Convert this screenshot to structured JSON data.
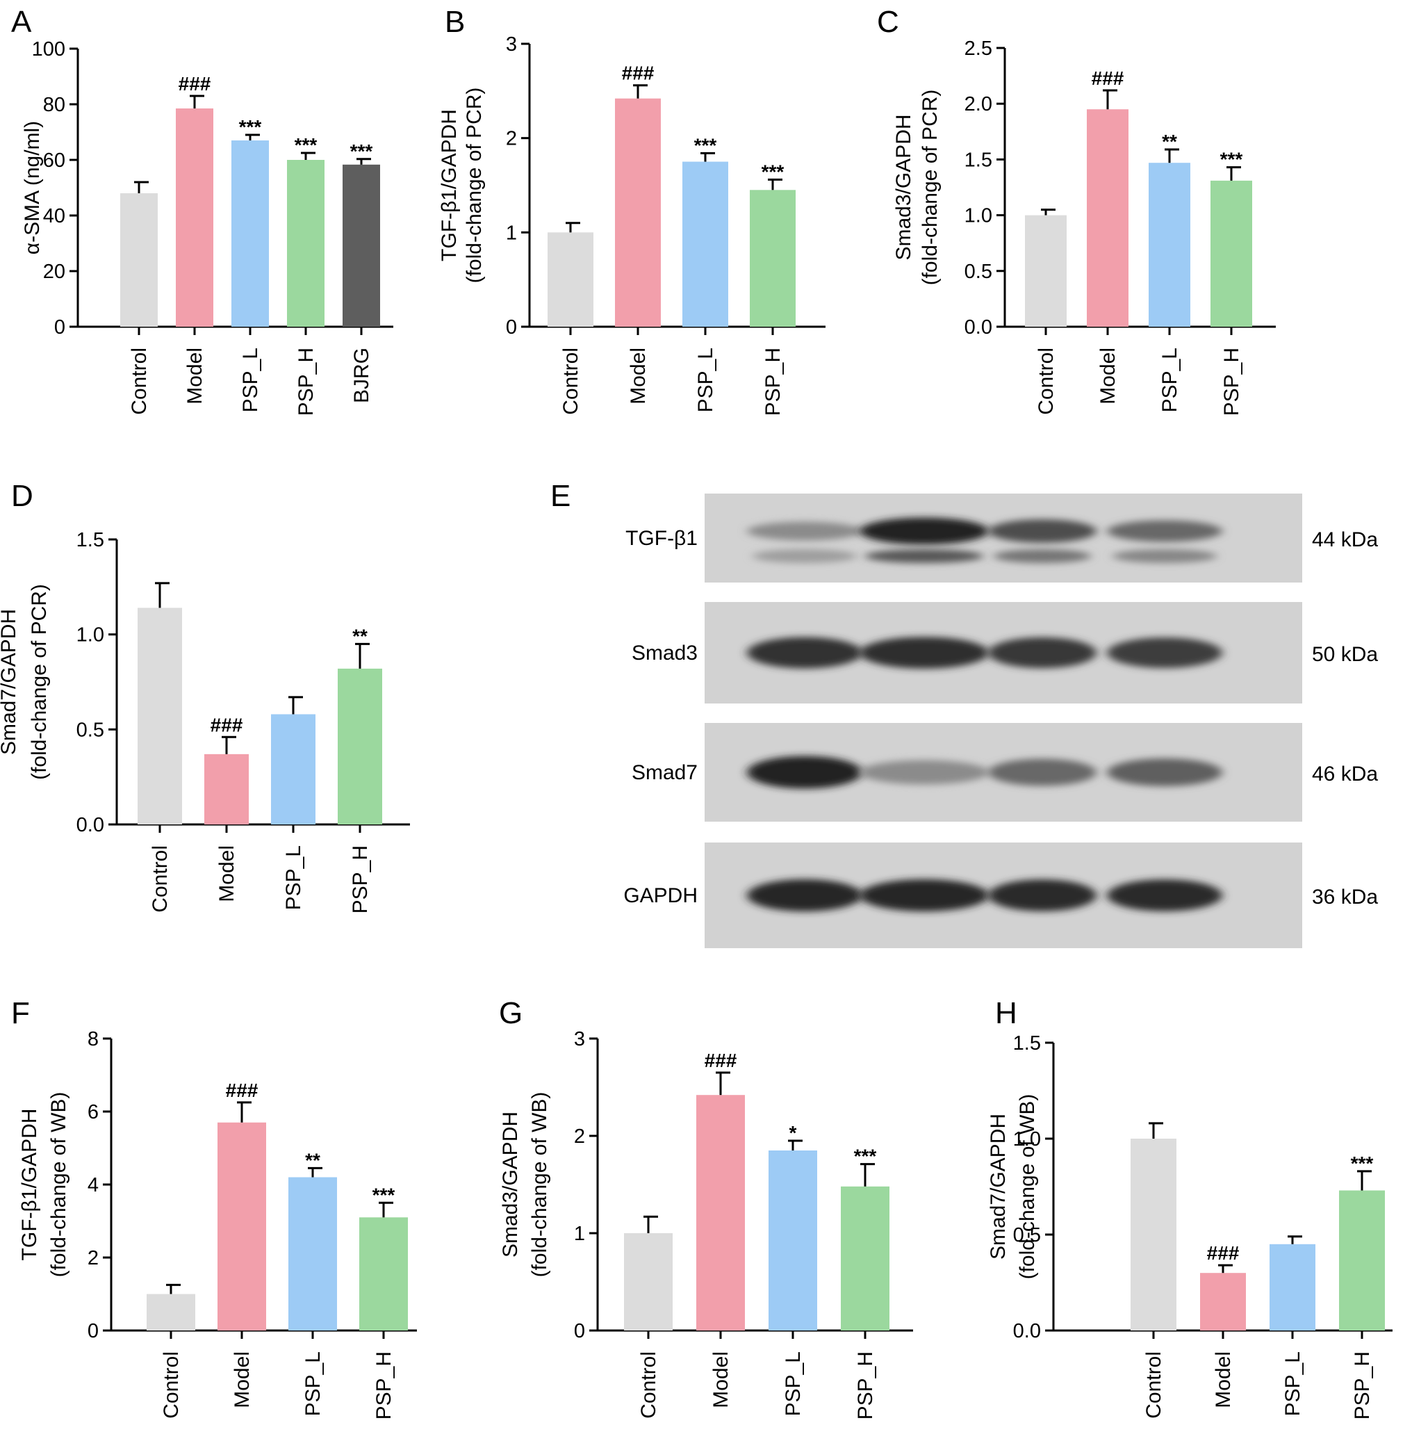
{
  "colors": {
    "Control": "#dcdcdc",
    "Model": "#f29fab",
    "PSP_L": "#9dcbf5",
    "PSP_H": "#9bd89e",
    "BJRG": "#5e5e5e"
  },
  "chart_data": [
    {
      "panel": "A",
      "type": "bar",
      "categories": [
        "Control",
        "Model",
        "PSP_L",
        "PSP_H",
        "BJRG"
      ],
      "values": [
        48,
        78.5,
        67,
        60,
        58.3
      ],
      "errors": [
        4,
        4.5,
        2,
        2.5,
        2
      ],
      "significance": [
        "",
        "###",
        "***",
        "***",
        "***"
      ],
      "ylabel": "α-SMA (ng/ml)",
      "ylim": [
        0,
        100
      ],
      "yticks": [
        "0",
        "20",
        "40",
        "60",
        "80",
        "100"
      ]
    },
    {
      "panel": "B",
      "type": "bar",
      "categories": [
        "Control",
        "Model",
        "PSP_L",
        "PSP_H"
      ],
      "values": [
        1.0,
        2.42,
        1.75,
        1.45
      ],
      "errors": [
        0.1,
        0.14,
        0.09,
        0.11
      ],
      "significance": [
        "",
        "###",
        "***",
        "***"
      ],
      "ylabel": "TGF-β1/GAPDH",
      "ylabel2": "(fold-change of PCR)",
      "ylim": [
        0,
        3
      ],
      "yticks": [
        "0",
        "1",
        "2",
        "3"
      ]
    },
    {
      "panel": "C",
      "type": "bar",
      "categories": [
        "Control",
        "Model",
        "PSP_L",
        "PSP_H"
      ],
      "values": [
        1.0,
        1.95,
        1.47,
        1.31
      ],
      "errors": [
        0.05,
        0.17,
        0.12,
        0.12
      ],
      "significance": [
        "",
        "###",
        "**",
        "***"
      ],
      "ylabel": "Smad3/GAPDH",
      "ylabel2": "(fold-change of PCR)",
      "ylim": [
        0,
        2.5
      ],
      "yticks": [
        "0.0",
        "0.5",
        "1.0",
        "1.5",
        "2.0",
        "2.5"
      ]
    },
    {
      "panel": "D",
      "type": "bar",
      "categories": [
        "Control",
        "Model",
        "PSP_L",
        "PSP_H"
      ],
      "values": [
        1.14,
        0.37,
        0.58,
        0.82
      ],
      "errors": [
        0.13,
        0.09,
        0.09,
        0.13
      ],
      "significance": [
        "",
        "###",
        "",
        "**"
      ],
      "ylabel": "Smad7/GAPDH",
      "ylabel2": "(fold-change of PCR)",
      "ylim": [
        0,
        1.5
      ],
      "yticks": [
        "0.0",
        "0.5",
        "1.0",
        "1.5"
      ]
    },
    {
      "panel": "F",
      "type": "bar",
      "categories": [
        "Control",
        "Model",
        "PSP_L",
        "PSP_H"
      ],
      "values": [
        1.0,
        5.7,
        4.2,
        3.1
      ],
      "errors": [
        0.25,
        0.55,
        0.25,
        0.4
      ],
      "significance": [
        "",
        "###",
        "**",
        "***"
      ],
      "ylabel": "TGF-β1/GAPDH",
      "ylabel2": "(fold-change of WB)",
      "ylim": [
        0,
        8
      ],
      "yticks": [
        "0",
        "2",
        "4",
        "6",
        "8"
      ]
    },
    {
      "panel": "G",
      "type": "bar",
      "categories": [
        "Control",
        "Model",
        "PSP_L",
        "PSP_H"
      ],
      "values": [
        1.0,
        2.42,
        1.85,
        1.48
      ],
      "errors": [
        0.17,
        0.23,
        0.1,
        0.23
      ],
      "significance": [
        "",
        "###",
        "*",
        "***"
      ],
      "ylabel": "Smad3/GAPDH",
      "ylabel2": "(fold-change of WB)",
      "ylim": [
        0,
        3
      ],
      "yticks": [
        "0",
        "1",
        "2",
        "3"
      ]
    },
    {
      "panel": "H",
      "type": "bar",
      "categories": [
        "Control",
        "Model",
        "PSP_L",
        "PSP_H"
      ],
      "values": [
        1.0,
        0.3,
        0.45,
        0.73
      ],
      "errors": [
        0.08,
        0.04,
        0.04,
        0.1
      ],
      "significance": [
        "",
        "###",
        "",
        "***"
      ],
      "ylabel": "Smad7/GAPDH",
      "ylabel2": "(fold-change of WB)",
      "ylim": [
        0,
        1.5
      ],
      "yticks": [
        "0.0",
        "0.5",
        "1.0",
        "1.5"
      ]
    }
  ],
  "western_blot": {
    "panel": "E",
    "rows": [
      {
        "protein": "TGF-β1",
        "size": "44 kDa",
        "intensity": [
          0.35,
          0.95,
          0.7,
          0.55
        ]
      },
      {
        "protein": "Smad3",
        "size": "50 kDa",
        "intensity": [
          0.85,
          0.88,
          0.82,
          0.8
        ]
      },
      {
        "protein": "Smad7",
        "size": "46 kDa",
        "intensity": [
          0.95,
          0.35,
          0.55,
          0.6
        ]
      },
      {
        "protein": "GAPDH",
        "size": "36 kDa",
        "intensity": [
          0.92,
          0.92,
          0.9,
          0.9
        ]
      }
    ]
  }
}
